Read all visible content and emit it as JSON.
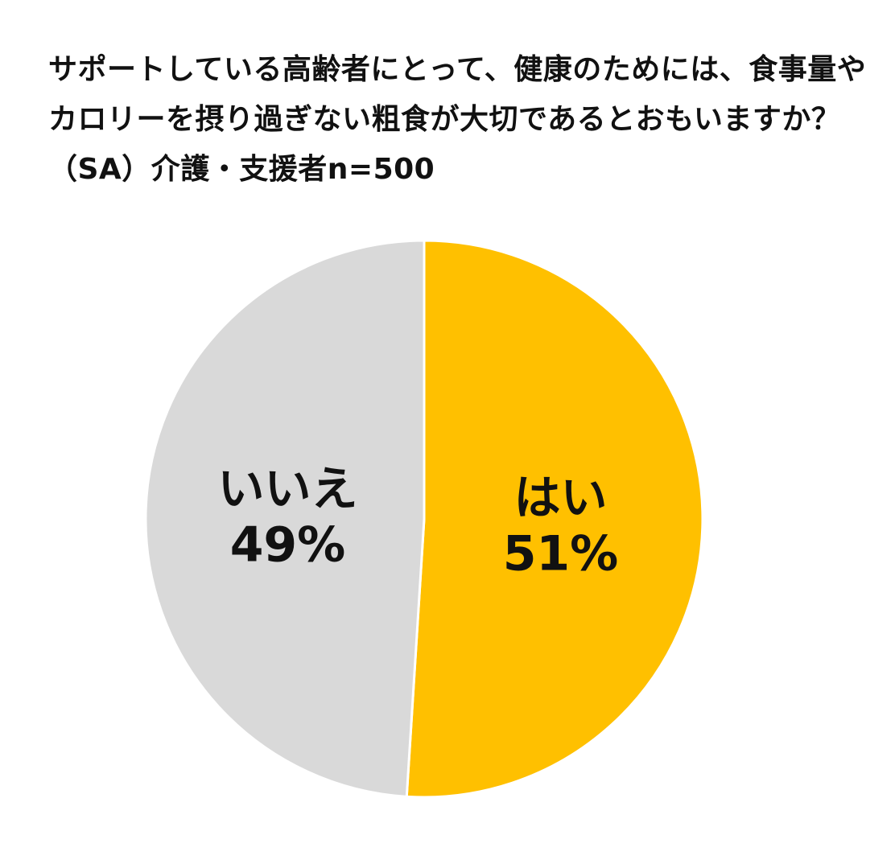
{
  "title_lines": [
    "サポートしている高齢者にとって、健康のためには、食事量や",
    "カロリーを摂り過ぎない粗食が大切であるとおもいますか？",
    "（SA）介護・支援者n=500"
  ],
  "chart_data": {
    "type": "pie",
    "title": "サポートしている高齢者にとって、健康のためには、食事量やカロリーを摂り過ぎない粗食が大切であるとおもいますか？（SA）介護・支援者n=500",
    "slices": [
      {
        "label": "はい",
        "value": 51,
        "value_label": "51%",
        "color": "#FFC000"
      },
      {
        "label": "いいえ",
        "value": 49,
        "value_label": "49%",
        "color": "#D9D9D9"
      }
    ],
    "start": "12 o'clock",
    "direction": "clockwise",
    "legend": "none",
    "slice_border_color": "#FFFFFF"
  }
}
